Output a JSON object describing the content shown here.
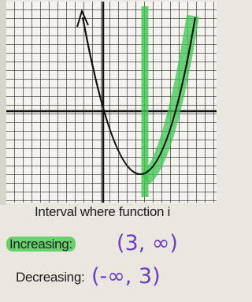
{
  "interval_heading": "Interval where function i",
  "increasing": {
    "label": "Increasing:",
    "answer": "(3, ∞)"
  },
  "decreasing": {
    "label": "Decreasing:",
    "answer": "(-∞, 3)"
  }
}
